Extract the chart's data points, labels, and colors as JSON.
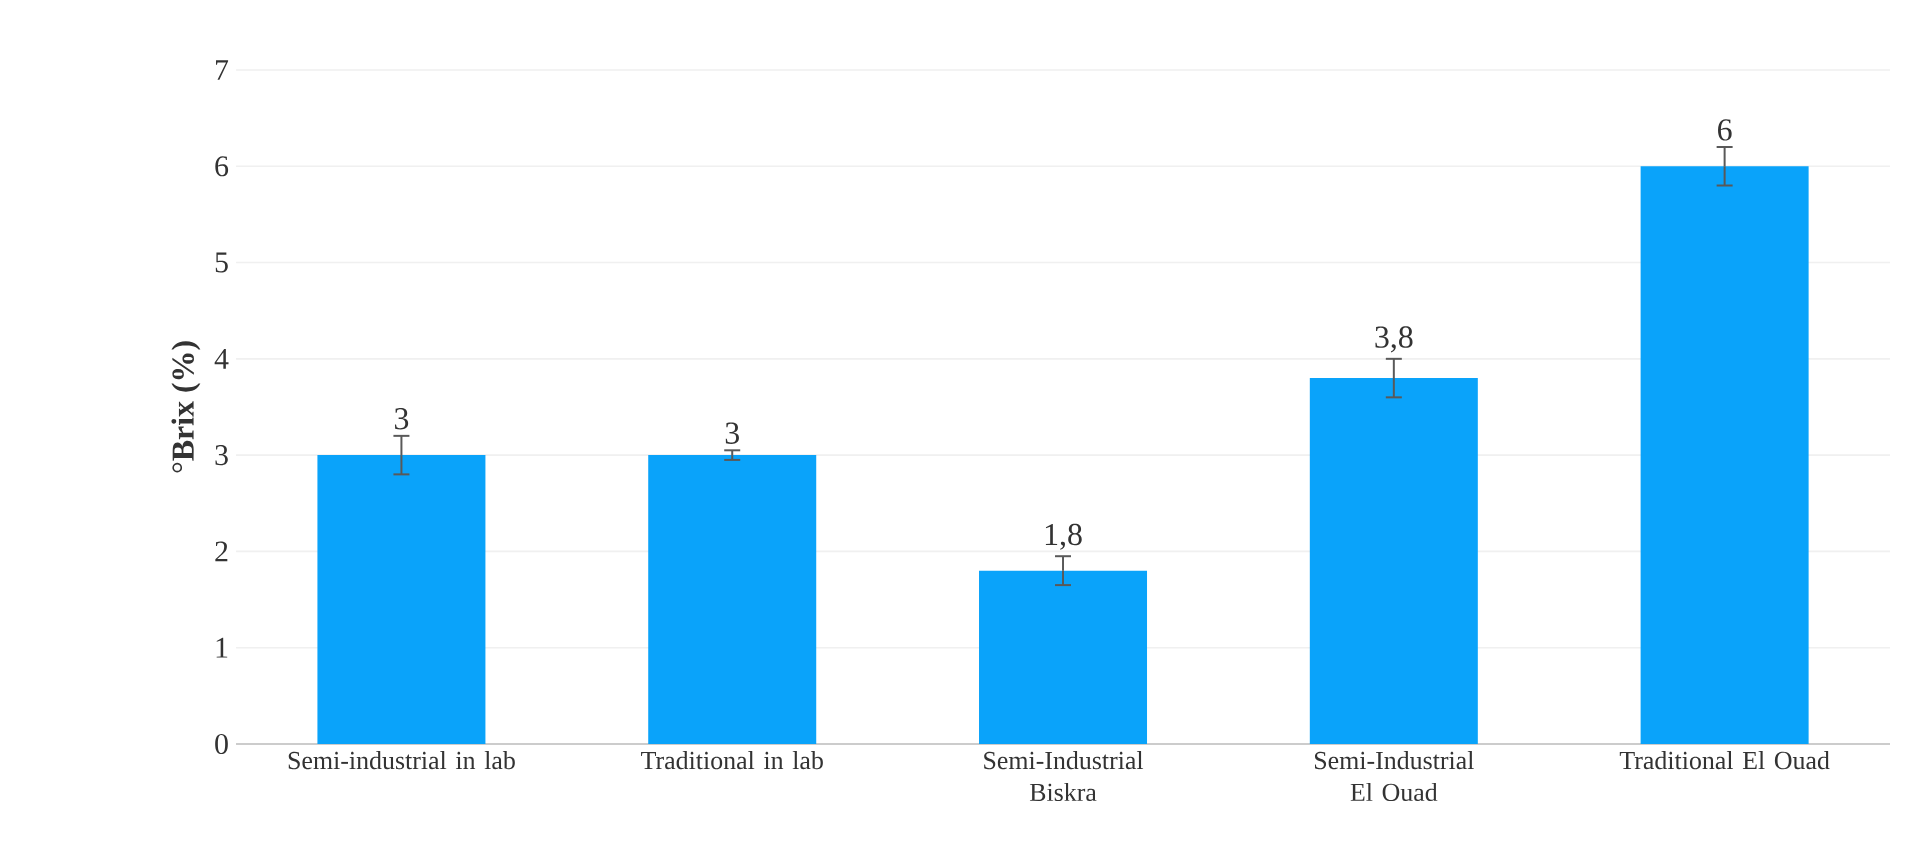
{
  "chart_data": {
    "type": "bar",
    "ylabel": "°**Brix (%)**",
    "categories": [
      "Semi-industrial in lab",
      "Traditional in lab",
      "Semi-Industrial Biskra",
      "Semi-Industrial El Ouad",
      "Traditional El Ouad"
    ],
    "values": [
      3,
      3,
      1.8,
      3.8,
      6
    ],
    "errors": [
      0.2,
      0.05,
      0.15,
      0.2,
      0.2
    ],
    "value_labels": [
      "3",
      "3",
      "1,8",
      "3,8",
      "6"
    ],
    "color": "#0aa3fa",
    "ylim": [
      0,
      7
    ],
    "yticks": [
      0,
      1,
      2,
      3,
      4,
      5,
      6,
      7
    ],
    "grid": "y"
  }
}
